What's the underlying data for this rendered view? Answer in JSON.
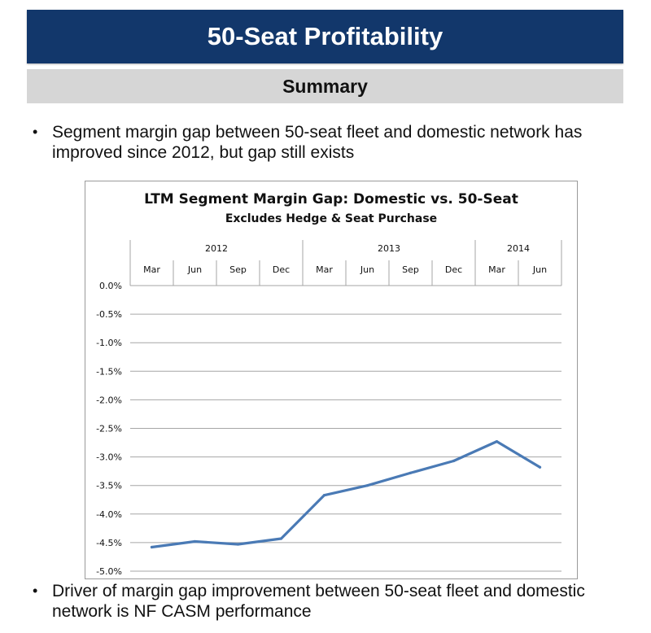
{
  "slide": {
    "title": "50-Seat Profitability",
    "subtitle": "Summary",
    "bullets": [
      "Segment margin gap between 50-seat fleet and domestic network has improved since 2012, but gap still exists",
      "Driver of margin gap improvement between 50-seat fleet and domestic network is NF CASM performance"
    ]
  },
  "colors": {
    "title_bar": "#12376b",
    "subtitle_bar": "#d6d6d6",
    "series_line": "#4a7ab5",
    "gridline": "#a6a6a6"
  },
  "chart_data": {
    "type": "line",
    "title": "LTM Segment Margin Gap: Domestic vs. 50-Seat",
    "subtitle": "Excludes Hedge & Seat Purchase",
    "years": [
      {
        "label": "2012",
        "months": 4
      },
      {
        "label": "2013",
        "months": 4
      },
      {
        "label": "2014",
        "months": 2
      }
    ],
    "categories": [
      "Mar",
      "Jun",
      "Sep",
      "Dec",
      "Mar",
      "Jun",
      "Sep",
      "Dec",
      "Mar",
      "Jun"
    ],
    "series": [
      {
        "name": "Segment Margin Gap",
        "values": [
          -4.58,
          -4.48,
          -4.53,
          -4.43,
          -3.67,
          -3.5,
          -3.28,
          -3.07,
          -2.73,
          -3.18
        ]
      }
    ],
    "y_ticks": [
      "0.0%",
      "-0.5%",
      "-1.0%",
      "-1.5%",
      "-2.0%",
      "-2.5%",
      "-3.0%",
      "-3.5%",
      "-4.0%",
      "-4.5%",
      "-5.0%"
    ],
    "ylim": [
      -5.0,
      0.0
    ],
    "xaxis_position": "top",
    "grid": true,
    "legend": "none"
  }
}
